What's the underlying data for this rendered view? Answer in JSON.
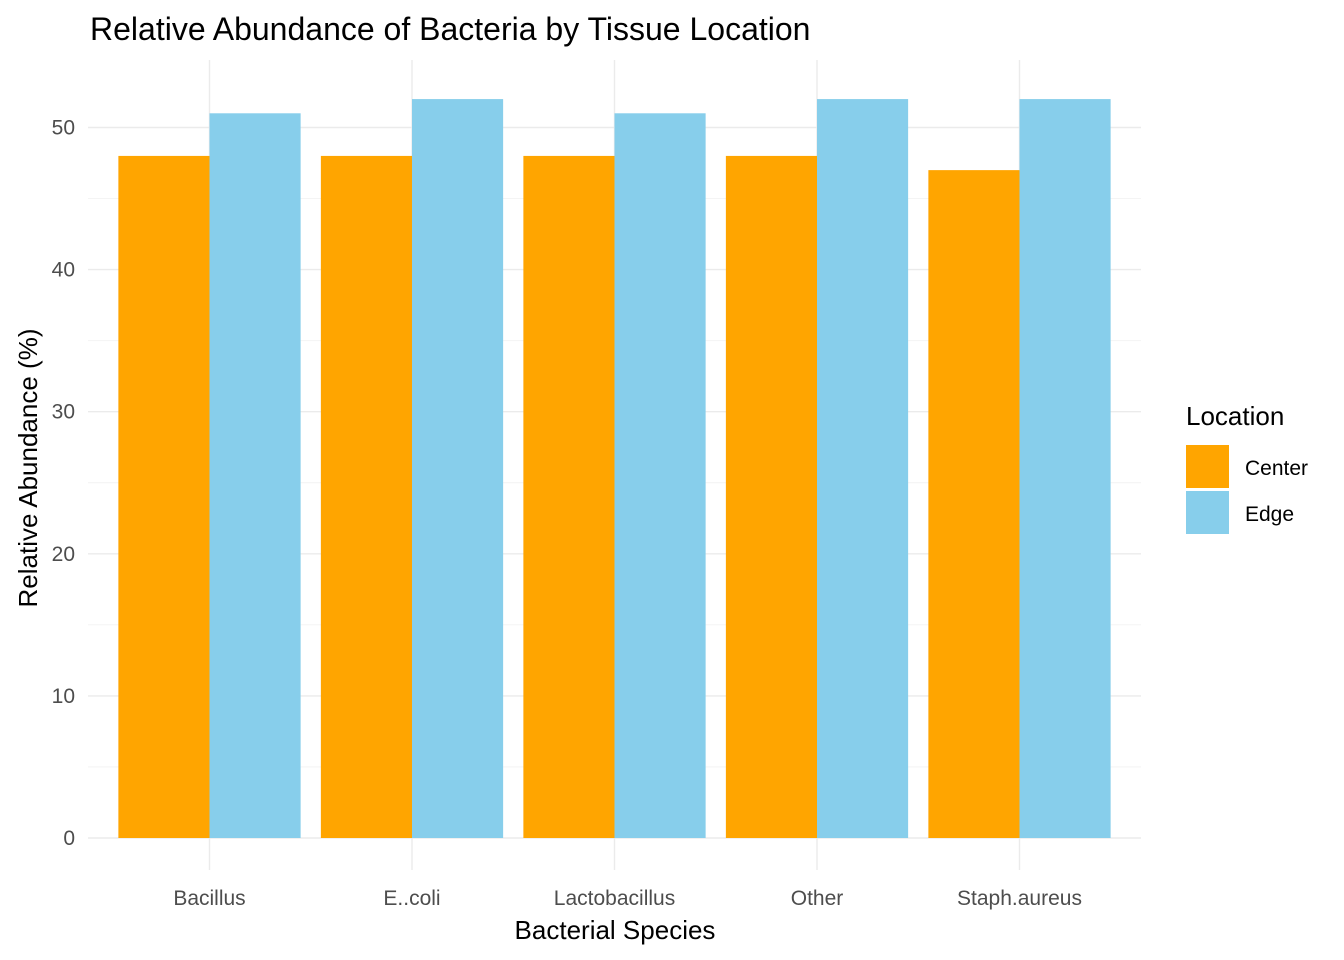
{
  "chart_data": {
    "type": "bar",
    "title": "Relative Abundance of Bacteria by Tissue Location",
    "xlabel": "Bacterial Species",
    "ylabel": "Relative Abundance (%)",
    "categories": [
      "Bacillus",
      "E..coli",
      "Lactobacillus",
      "Other",
      "Staph.aureus"
    ],
    "series": [
      {
        "name": "Center",
        "color": "#FFA500",
        "values": [
          48,
          48,
          48,
          48,
          47
        ]
      },
      {
        "name": "Edge",
        "color": "#87CEEB",
        "values": [
          51,
          52,
          51,
          52,
          52
        ]
      }
    ],
    "ylim": [
      0,
      54.6
    ],
    "yticks": [
      0,
      10,
      20,
      30,
      40,
      50
    ],
    "grid": true,
    "legend": {
      "title": "Location",
      "position": "right"
    }
  }
}
